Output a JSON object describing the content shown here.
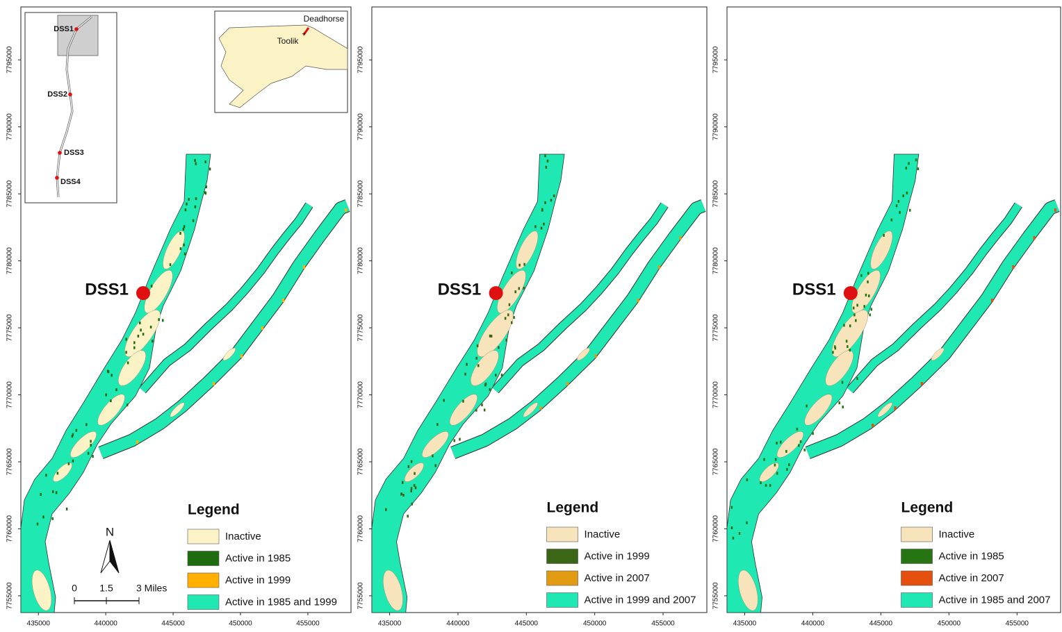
{
  "panels": [
    {
      "site_label": "DSS1",
      "xlim": [
        433700,
        458200
      ],
      "ylim": [
        7753750,
        7798950
      ],
      "xticks": [
        435000,
        440000,
        445000,
        450000,
        455000
      ],
      "yticks": [
        7755000,
        7760000,
        7765000,
        7770000,
        7775000,
        7780000,
        7785000,
        7790000,
        7795000
      ],
      "legend": {
        "title": "Legend",
        "items": [
          {
            "label": "Inactive",
            "color": "#fbf3c6"
          },
          {
            "label": "Active in 1985",
            "color": "#1f6b10"
          },
          {
            "label": "Active in 1999",
            "color": "#ffb000"
          },
          {
            "label": "Active in 1985 and 1999",
            "color": "#1fe8b2"
          }
        ]
      }
    },
    {
      "site_label": "DSS1",
      "xlim": [
        433700,
        458200
      ],
      "ylim": [
        7753750,
        7798950
      ],
      "xticks": [
        435000,
        440000,
        445000,
        450000,
        455000
      ],
      "yticks": [
        7755000,
        7760000,
        7765000,
        7770000,
        7775000,
        7780000,
        7785000,
        7790000,
        7795000
      ],
      "legend": {
        "title": "Legend",
        "items": [
          {
            "label": "Inactive",
            "color": "#f8e4bb"
          },
          {
            "label": "Active in 1999",
            "color": "#3a6615"
          },
          {
            "label": "Active in 2007",
            "color": "#e19b12"
          },
          {
            "label": "Active in 1999 and 2007",
            "color": "#1fe8b2"
          }
        ]
      }
    },
    {
      "site_label": "DSS1",
      "xlim": [
        433700,
        458200
      ],
      "ylim": [
        7753750,
        7798950
      ],
      "xticks": [
        435000,
        440000,
        445000,
        450000,
        455000
      ],
      "yticks": [
        7755000,
        7760000,
        7765000,
        7770000,
        7775000,
        7780000,
        7785000,
        7790000,
        7795000
      ],
      "legend": {
        "title": "Legend",
        "items": [
          {
            "label": "Inactive",
            "color": "#f8e4bb"
          },
          {
            "label": "Active in 1985",
            "color": "#267512"
          },
          {
            "label": "Active in 2007",
            "color": "#e5500f"
          },
          {
            "label": "Active in 1985 and 2007",
            "color": "#1fe8b2"
          }
        ]
      }
    }
  ],
  "inset": {
    "sites": [
      "DSS1",
      "DSS2",
      "DSS3",
      "DSS4"
    ]
  },
  "locator": {
    "places": [
      "Deadhorse",
      "Toolik"
    ]
  },
  "scale_bar": {
    "north": "N",
    "labels": [
      "0",
      "1.5",
      "3 Miles"
    ]
  }
}
